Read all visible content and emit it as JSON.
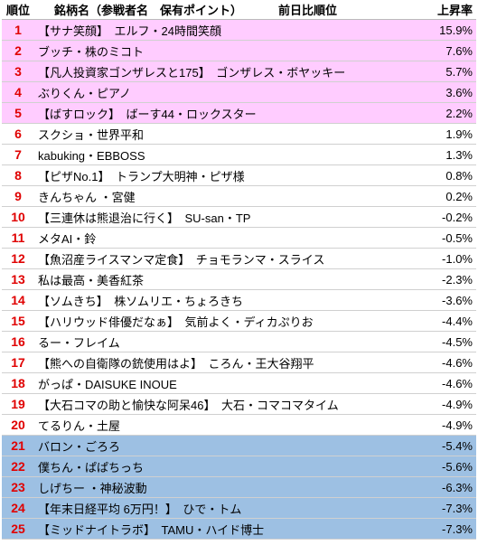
{
  "header": {
    "rank": "順位",
    "name": "銘柄名（参戦者名　保有ポイント）",
    "prev": "前日比順位",
    "rate": "上昇率"
  },
  "table": {
    "rows": [
      [
        "1",
        "【サナ笑顔】　エルフ・24時間笑顔",
        "15.9%"
      ],
      [
        "2",
        "ブッチ・株のミコト",
        "7.6%"
      ],
      [
        "3",
        "【凡人投資家ゴンザレスと175】　ゴンザレス・ボヤッキー",
        "5.7%"
      ],
      [
        "4",
        "ぶりくん・ピアノ",
        "3.6%"
      ],
      [
        "5",
        "【ばすロック】　ばーす44・ロックスター",
        "2.2%"
      ],
      [
        "6",
        "スクショ・世界平和",
        "1.9%"
      ],
      [
        "7",
        "kabuking・EBBOSS",
        "1.3%"
      ],
      [
        "8",
        "【ピザNo.1】　トランプ大明神・ピザ様",
        "0.8%"
      ],
      [
        "9",
        "きんちゃん ・宮健",
        "0.2%"
      ],
      [
        "10",
        "【三連休は熊退治に行く】　SU-san・TP",
        "-0.2%"
      ],
      [
        "11",
        "メタAI・鈴",
        "-0.5%"
      ],
      [
        "12",
        "【魚沼産ライスマンマ定食】　チョモランマ・スライス",
        "-1.0%"
      ],
      [
        "13",
        "私は最高・美香紅茶",
        "-2.3%"
      ],
      [
        "14",
        "【ソムきち】　株ソムリエ・ちょろきち",
        "-3.6%"
      ],
      [
        "15",
        "【ハリウッド俳優だなぁ】　気前よく・ディカぷりお",
        "-4.4%"
      ],
      [
        "16",
        "るー・フレイム",
        "-4.5%"
      ],
      [
        "17",
        "【熊への自衛隊の銃使用はよ】　ころん・王大谷翔平",
        "-4.6%"
      ],
      [
        "18",
        "がっぱ・DAISUKE INOUE",
        "-4.6%"
      ],
      [
        "19",
        "【大石コマの助と愉快な阿呆46】　大石・コマコマタイム",
        "-4.9%"
      ],
      [
        "20",
        "てるりん・土屋",
        "-4.9%"
      ],
      [
        "21",
        "バロン・ごろろ",
        "-5.4%"
      ],
      [
        "22",
        "僕ちん・ぱぱちっち",
        "-5.6%"
      ],
      [
        "23",
        "しげちー ・神秘波動",
        "-6.3%"
      ],
      [
        "24",
        "【年末日経平均 6万円！】　ひで・トム",
        "-7.3%"
      ],
      [
        "25",
        "【ミッドナイトラボ】　TAMU・ハイド博士",
        "-7.3%"
      ]
    ]
  }
}
